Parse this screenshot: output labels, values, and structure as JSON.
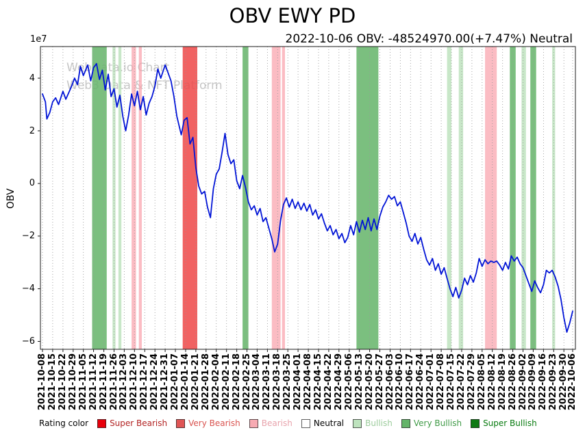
{
  "figure": {
    "title": "OBV EWY PD",
    "subtitle": "2022-10-06 OBV: -48524970.00(+7.47%) Neutral",
    "watermark_line1": "WebData.io Chart",
    "watermark_line2": "Web3 Data & NFT Platform"
  },
  "legend": {
    "label": "Rating color",
    "items": [
      {
        "key": "super-bearish",
        "label": "Super Bearish",
        "swatch_color": "#e8000b",
        "text_color": "#b22222"
      },
      {
        "key": "very-bearish",
        "label": "Very Bearish",
        "swatch_color": "#e05555",
        "text_color": "#d9534f"
      },
      {
        "key": "bearish",
        "label": "Bearish",
        "swatch_color": "#f7aab2",
        "text_color": "#e8a3ac"
      },
      {
        "key": "neutral",
        "label": "Neutral",
        "swatch_color": "#ffffff",
        "text_color": "#000000"
      },
      {
        "key": "bullish",
        "label": "Bullish",
        "swatch_color": "#bee3be",
        "text_color": "#9ccc9c"
      },
      {
        "key": "very-bullish",
        "label": "Very Bullish",
        "swatch_color": "#64b469",
        "text_color": "#3f9a46"
      },
      {
        "key": "super-bullish",
        "label": "Super Bullish",
        "swatch_color": "#0e7a14",
        "text_color": "#077a0e"
      }
    ]
  },
  "chart_data": {
    "type": "line",
    "title": "OBV EWY PD",
    "ylabel": "OBV",
    "y_offset_label": "1e7",
    "value_unit_multiplier": 10000000,
    "x_start_date": "2021-10-08",
    "x_end_date": "2022-10-06",
    "x_total_days": 363,
    "grid": "vertical-dotted",
    "line_color": "#0013d6",
    "ylim": [
      -6.3,
      5.2
    ],
    "ytick_values": [
      4,
      2,
      0,
      -2,
      -4,
      -6
    ],
    "ytick_labels": [
      "4",
      "2",
      "0",
      "−2",
      "−4",
      "−6"
    ],
    "x_tick_days": [
      0,
      7,
      14,
      21,
      28,
      35,
      42,
      49,
      56,
      63,
      70,
      77,
      84,
      91,
      98,
      105,
      112,
      119,
      126,
      133,
      140,
      147,
      154,
      161,
      168,
      175,
      182,
      189,
      196,
      203,
      210,
      217,
      224,
      231,
      238,
      245,
      252,
      259,
      266,
      273,
      280,
      287,
      294,
      301,
      308,
      315,
      322,
      329,
      336,
      343,
      350,
      357,
      363
    ],
    "x_tick_labels": [
      "2021-10-08",
      "2021-10-15",
      "2021-10-22",
      "2021-10-29",
      "2021-11-05",
      "2021-11-12",
      "2021-11-19",
      "2021-11-26",
      "2021-12-03",
      "2021-12-10",
      "2021-12-17",
      "2021-12-24",
      "2021-12-31",
      "2022-01-07",
      "2022-01-14",
      "2022-01-21",
      "2022-01-28",
      "2022-02-04",
      "2022-02-11",
      "2022-02-18",
      "2022-02-25",
      "2022-03-04",
      "2022-03-11",
      "2022-03-18",
      "2022-03-25",
      "2022-04-01",
      "2022-04-08",
      "2022-04-15",
      "2022-04-22",
      "2022-04-29",
      "2022-05-06",
      "2022-05-13",
      "2022-05-20",
      "2022-05-27",
      "2022-06-03",
      "2022-06-10",
      "2022-06-17",
      "2022-06-24",
      "2022-07-01",
      "2022-07-08",
      "2022-07-15",
      "2022-07-22",
      "2022-07-29",
      "2022-08-05",
      "2022-08-12",
      "2022-08-19",
      "2022-08-26",
      "2022-09-02",
      "2022-09-09",
      "2022-09-16",
      "2022-09-23",
      "2022-09-30",
      "2022-10-06"
    ],
    "band_colors": {
      "super_bearish": "rgba(230,0,10,0.85)",
      "very_bearish": "rgba(238,70,70,0.85)",
      "bearish": "rgba(250,160,170,0.70)",
      "neutral": "rgba(255,255,255,0)",
      "bullish": "rgba(190,227,190,0.85)",
      "very_bullish": "rgba(100,180,105,0.85)",
      "super_bullish": "rgba(14,122,20,0.85)"
    },
    "bands": [
      {
        "start": 34,
        "end": 44,
        "rating": "very_bullish"
      },
      {
        "start": 48,
        "end": 50,
        "rating": "bullish"
      },
      {
        "start": 52,
        "end": 54,
        "rating": "bullish"
      },
      {
        "start": 61,
        "end": 64,
        "rating": "bearish"
      },
      {
        "start": 66,
        "end": 68,
        "rating": "bearish"
      },
      {
        "start": 96,
        "end": 106,
        "rating": "very_bearish"
      },
      {
        "start": 137,
        "end": 141,
        "rating": "very_bullish"
      },
      {
        "start": 157,
        "end": 163,
        "rating": "bearish"
      },
      {
        "start": 164,
        "end": 166,
        "rating": "bearish"
      },
      {
        "start": 215,
        "end": 230,
        "rating": "very_bullish"
      },
      {
        "start": 277,
        "end": 280,
        "rating": "bullish"
      },
      {
        "start": 285,
        "end": 288,
        "rating": "bullish"
      },
      {
        "start": 303,
        "end": 311,
        "rating": "bearish"
      },
      {
        "start": 320,
        "end": 324,
        "rating": "very_bullish"
      },
      {
        "start": 328,
        "end": 331,
        "rating": "bullish"
      },
      {
        "start": 334,
        "end": 338,
        "rating": "very_bullish"
      },
      {
        "start": 349,
        "end": 351,
        "rating": "bullish"
      }
    ],
    "series": [
      {
        "name": "OBV",
        "points": [
          [
            0,
            3.4
          ],
          [
            2,
            3.1
          ],
          [
            3,
            2.45
          ],
          [
            5,
            2.7
          ],
          [
            7,
            3.1
          ],
          [
            9,
            3.25
          ],
          [
            11,
            3.0
          ],
          [
            14,
            3.5
          ],
          [
            16,
            3.2
          ],
          [
            18,
            3.45
          ],
          [
            20,
            3.7
          ],
          [
            22,
            4.0
          ],
          [
            24,
            3.75
          ],
          [
            26,
            4.45
          ],
          [
            28,
            4.1
          ],
          [
            31,
            4.5
          ],
          [
            33,
            3.9
          ],
          [
            35,
            4.4
          ],
          [
            37,
            4.55
          ],
          [
            39,
            3.95
          ],
          [
            41,
            4.3
          ],
          [
            43,
            3.55
          ],
          [
            45,
            4.15
          ],
          [
            47,
            3.3
          ],
          [
            49,
            3.6
          ],
          [
            51,
            2.9
          ],
          [
            53,
            3.35
          ],
          [
            55,
            2.55
          ],
          [
            57,
            2.0
          ],
          [
            59,
            2.6
          ],
          [
            61,
            3.4
          ],
          [
            63,
            2.95
          ],
          [
            65,
            3.5
          ],
          [
            67,
            2.8
          ],
          [
            69,
            3.3
          ],
          [
            71,
            2.6
          ],
          [
            73,
            3.05
          ],
          [
            75,
            3.3
          ],
          [
            77,
            3.7
          ],
          [
            79,
            4.35
          ],
          [
            81,
            4.0
          ],
          [
            84,
            4.5
          ],
          [
            86,
            4.2
          ],
          [
            88,
            3.9
          ],
          [
            90,
            3.3
          ],
          [
            92,
            2.55
          ],
          [
            95,
            1.85
          ],
          [
            97,
            2.4
          ],
          [
            99,
            2.5
          ],
          [
            101,
            1.5
          ],
          [
            103,
            1.75
          ],
          [
            105,
            0.6
          ],
          [
            107,
            -0.1
          ],
          [
            109,
            -0.4
          ],
          [
            111,
            -0.3
          ],
          [
            113,
            -0.9
          ],
          [
            115,
            -1.3
          ],
          [
            117,
            -0.2
          ],
          [
            119,
            0.35
          ],
          [
            121,
            0.55
          ],
          [
            123,
            1.2
          ],
          [
            125,
            1.9
          ],
          [
            127,
            1.1
          ],
          [
            129,
            0.75
          ],
          [
            131,
            0.9
          ],
          [
            133,
            0.1
          ],
          [
            135,
            -0.2
          ],
          [
            137,
            0.3
          ],
          [
            139,
            -0.15
          ],
          [
            141,
            -0.7
          ],
          [
            143,
            -1.0
          ],
          [
            145,
            -0.85
          ],
          [
            147,
            -1.2
          ],
          [
            149,
            -0.95
          ],
          [
            151,
            -1.45
          ],
          [
            153,
            -1.3
          ],
          [
            155,
            -1.7
          ],
          [
            157,
            -2.1
          ],
          [
            159,
            -2.6
          ],
          [
            161,
            -2.3
          ],
          [
            163,
            -1.4
          ],
          [
            165,
            -0.8
          ],
          [
            167,
            -0.55
          ],
          [
            169,
            -0.9
          ],
          [
            171,
            -0.6
          ],
          [
            173,
            -0.95
          ],
          [
            175,
            -0.7
          ],
          [
            177,
            -1.0
          ],
          [
            179,
            -0.75
          ],
          [
            181,
            -1.05
          ],
          [
            183,
            -0.8
          ],
          [
            185,
            -1.2
          ],
          [
            187,
            -1.0
          ],
          [
            189,
            -1.35
          ],
          [
            191,
            -1.15
          ],
          [
            193,
            -1.5
          ],
          [
            195,
            -1.8
          ],
          [
            197,
            -1.6
          ],
          [
            199,
            -1.95
          ],
          [
            201,
            -1.75
          ],
          [
            203,
            -2.1
          ],
          [
            205,
            -1.9
          ],
          [
            207,
            -2.25
          ],
          [
            209,
            -2.05
          ],
          [
            211,
            -1.6
          ],
          [
            213,
            -1.95
          ],
          [
            215,
            -1.45
          ],
          [
            217,
            -1.85
          ],
          [
            219,
            -1.4
          ],
          [
            221,
            -1.75
          ],
          [
            223,
            -1.3
          ],
          [
            225,
            -1.8
          ],
          [
            227,
            -1.35
          ],
          [
            229,
            -1.75
          ],
          [
            231,
            -1.25
          ],
          [
            233,
            -0.9
          ],
          [
            235,
            -0.7
          ],
          [
            237,
            -0.45
          ],
          [
            239,
            -0.6
          ],
          [
            241,
            -0.5
          ],
          [
            243,
            -0.85
          ],
          [
            245,
            -0.7
          ],
          [
            247,
            -1.1
          ],
          [
            249,
            -1.5
          ],
          [
            251,
            -2.0
          ],
          [
            253,
            -2.2
          ],
          [
            255,
            -1.9
          ],
          [
            257,
            -2.3
          ],
          [
            259,
            -2.05
          ],
          [
            261,
            -2.5
          ],
          [
            263,
            -2.9
          ],
          [
            265,
            -3.1
          ],
          [
            267,
            -2.85
          ],
          [
            269,
            -3.3
          ],
          [
            271,
            -3.05
          ],
          [
            273,
            -3.45
          ],
          [
            275,
            -3.2
          ],
          [
            277,
            -3.6
          ],
          [
            279,
            -4.0
          ],
          [
            281,
            -4.3
          ],
          [
            283,
            -3.95
          ],
          [
            285,
            -4.35
          ],
          [
            287,
            -4.05
          ],
          [
            289,
            -3.6
          ],
          [
            291,
            -3.85
          ],
          [
            293,
            -3.5
          ],
          [
            295,
            -3.75
          ],
          [
            297,
            -3.4
          ],
          [
            299,
            -2.85
          ],
          [
            301,
            -3.15
          ],
          [
            303,
            -2.9
          ],
          [
            305,
            -3.05
          ],
          [
            307,
            -2.95
          ],
          [
            309,
            -3.0
          ],
          [
            311,
            -2.95
          ],
          [
            313,
            -3.1
          ],
          [
            315,
            -3.3
          ],
          [
            317,
            -3.0
          ],
          [
            319,
            -3.25
          ],
          [
            321,
            -2.75
          ],
          [
            323,
            -2.95
          ],
          [
            325,
            -2.8
          ],
          [
            327,
            -3.05
          ],
          [
            329,
            -3.2
          ],
          [
            331,
            -3.5
          ],
          [
            333,
            -3.8
          ],
          [
            335,
            -4.1
          ],
          [
            337,
            -3.7
          ],
          [
            339,
            -3.95
          ],
          [
            341,
            -4.15
          ],
          [
            343,
            -3.85
          ],
          [
            345,
            -3.3
          ],
          [
            347,
            -3.4
          ],
          [
            349,
            -3.3
          ],
          [
            351,
            -3.55
          ],
          [
            353,
            -3.9
          ],
          [
            355,
            -4.4
          ],
          [
            357,
            -5.1
          ],
          [
            359,
            -5.65
          ],
          [
            361,
            -5.3
          ],
          [
            363,
            -4.85
          ]
        ]
      }
    ]
  }
}
